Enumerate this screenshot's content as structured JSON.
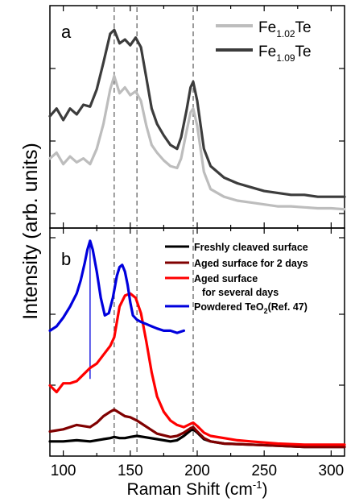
{
  "chart_data": [
    {
      "panel": "a",
      "type": "line",
      "xlim": [
        90,
        310
      ],
      "ylim": [
        0,
        1
      ],
      "y_ticks_labeled": false,
      "grid": false,
      "legend_position": "top-right",
      "legend": [
        {
          "label": "Fe",
          "sub": "1.02",
          "suffix": "Te",
          "color": "#bdbdbd"
        },
        {
          "label": "Fe",
          "sub": "1.09",
          "suffix": "Te",
          "color": "#3c3c3c"
        }
      ],
      "reference_lines_x": [
        138,
        155,
        197
      ],
      "series": [
        {
          "color": "#bdbdbd",
          "x": [
            90,
            95,
            100,
            105,
            110,
            115,
            120,
            125,
            130,
            135,
            138,
            142,
            146,
            150,
            154,
            158,
            162,
            166,
            170,
            175,
            180,
            185,
            188,
            192,
            195,
            197,
            200,
            205,
            210,
            220,
            230,
            240,
            250,
            260,
            270,
            280,
            290,
            300,
            310
          ],
          "y": [
            0.3,
            0.33,
            0.27,
            0.31,
            0.28,
            0.3,
            0.27,
            0.35,
            0.48,
            0.66,
            0.73,
            0.64,
            0.67,
            0.63,
            0.65,
            0.6,
            0.47,
            0.37,
            0.33,
            0.29,
            0.26,
            0.25,
            0.3,
            0.44,
            0.54,
            0.56,
            0.47,
            0.23,
            0.14,
            0.1,
            0.08,
            0.07,
            0.06,
            0.05,
            0.05,
            0.045,
            0.04,
            0.04,
            0.035
          ]
        },
        {
          "color": "#3c3c3c",
          "x": [
            90,
            95,
            100,
            105,
            110,
            115,
            120,
            125,
            130,
            135,
            138,
            142,
            146,
            150,
            154,
            158,
            162,
            166,
            170,
            175,
            180,
            185,
            188,
            192,
            195,
            197,
            200,
            205,
            210,
            220,
            230,
            240,
            250,
            260,
            270,
            280,
            290,
            300,
            310
          ],
          "y": [
            0.52,
            0.56,
            0.5,
            0.56,
            0.53,
            0.58,
            0.57,
            0.66,
            0.8,
            0.95,
            0.97,
            0.9,
            0.92,
            0.89,
            0.93,
            0.88,
            0.72,
            0.56,
            0.48,
            0.42,
            0.37,
            0.35,
            0.41,
            0.55,
            0.67,
            0.7,
            0.6,
            0.35,
            0.26,
            0.2,
            0.17,
            0.15,
            0.13,
            0.12,
            0.11,
            0.11,
            0.1,
            0.1,
            0.1
          ]
        }
      ]
    },
    {
      "panel": "b",
      "type": "line",
      "xlim": [
        90,
        310
      ],
      "ylim": [
        0,
        1
      ],
      "y_ticks_labeled": false,
      "grid": false,
      "legend_position": "top-right",
      "legend": [
        {
          "label": "Freshly cleaved surface",
          "color": "#000000"
        },
        {
          "label": "Aged surface for 2 days",
          "color": "#800000"
        },
        {
          "label": "Aged surface",
          "label2": "for several days",
          "color": "#ff0000"
        },
        {
          "label": "Powdered TeO",
          "sub": "2",
          "suffix": "(Ref. 47)",
          "color": "#0000dd"
        }
      ],
      "reference_lines_x": [
        138,
        155,
        197
      ],
      "vertical_marker_x": 120,
      "series": [
        {
          "name": "Freshly cleaved surface",
          "color": "#000000",
          "x": [
            90,
            100,
            110,
            120,
            130,
            135,
            138,
            142,
            146,
            150,
            155,
            160,
            170,
            180,
            185,
            190,
            195,
            197,
            200,
            205,
            210,
            220,
            240,
            260,
            280,
            300,
            310
          ],
          "y": [
            0.045,
            0.045,
            0.05,
            0.045,
            0.055,
            0.06,
            0.065,
            0.06,
            0.06,
            0.065,
            0.07,
            0.065,
            0.055,
            0.045,
            0.05,
            0.07,
            0.095,
            0.1,
            0.085,
            0.055,
            0.045,
            0.035,
            0.03,
            0.025,
            0.02,
            0.02,
            0.02
          ]
        },
        {
          "name": "Aged surface for 2 days",
          "color": "#800000",
          "x": [
            90,
            100,
            110,
            120,
            125,
            130,
            135,
            138,
            142,
            146,
            150,
            155,
            160,
            165,
            170,
            180,
            185,
            190,
            195,
            197,
            200,
            205,
            210,
            220,
            240,
            260,
            280,
            300,
            310
          ],
          "y": [
            0.09,
            0.1,
            0.12,
            0.11,
            0.13,
            0.16,
            0.18,
            0.19,
            0.175,
            0.16,
            0.155,
            0.14,
            0.12,
            0.1,
            0.08,
            0.065,
            0.07,
            0.085,
            0.105,
            0.11,
            0.09,
            0.06,
            0.045,
            0.035,
            0.03,
            0.025,
            0.02,
            0.02,
            0.02
          ]
        },
        {
          "name": "Aged surface for several days",
          "color": "#ff0000",
          "x": [
            90,
            95,
            100,
            105,
            110,
            115,
            120,
            125,
            130,
            135,
            138,
            142,
            146,
            150,
            154,
            158,
            162,
            166,
            170,
            175,
            180,
            185,
            190,
            195,
            197,
            200,
            205,
            210,
            220,
            230,
            240,
            260,
            280,
            300,
            310
          ],
          "y": [
            0.3,
            0.27,
            0.31,
            0.31,
            0.32,
            0.35,
            0.38,
            0.4,
            0.44,
            0.48,
            0.52,
            0.66,
            0.71,
            0.72,
            0.7,
            0.63,
            0.5,
            0.36,
            0.25,
            0.18,
            0.14,
            0.12,
            0.11,
            0.125,
            0.13,
            0.115,
            0.085,
            0.07,
            0.06,
            0.05,
            0.045,
            0.035,
            0.03,
            0.03,
            0.03
          ]
        },
        {
          "name": "Powdered TeO2(Ref. 47)",
          "color": "#0000dd",
          "x": [
            90,
            95,
            100,
            105,
            110,
            113,
            116,
            118,
            120,
            122,
            125,
            128,
            131,
            134,
            137,
            140,
            142,
            144,
            146,
            148,
            150,
            152,
            155,
            158,
            162,
            166,
            170,
            175,
            180,
            185,
            190
          ],
          "y": [
            0.55,
            0.57,
            0.61,
            0.66,
            0.72,
            0.78,
            0.86,
            0.92,
            0.96,
            0.92,
            0.82,
            0.7,
            0.62,
            0.63,
            0.7,
            0.8,
            0.84,
            0.85,
            0.82,
            0.76,
            0.68,
            0.62,
            0.6,
            0.59,
            0.58,
            0.57,
            0.56,
            0.55,
            0.55,
            0.54,
            0.55
          ]
        }
      ]
    }
  ],
  "axes": {
    "ylabel": "Intensity (arb. units)",
    "xlabel_prefix": "Raman Shift (cm",
    "xlabel_sup": "-1",
    "xlabel_suffix": ")",
    "xticks": [
      100,
      150,
      200,
      250,
      300
    ]
  },
  "panel_labels": [
    "a",
    "b"
  ]
}
